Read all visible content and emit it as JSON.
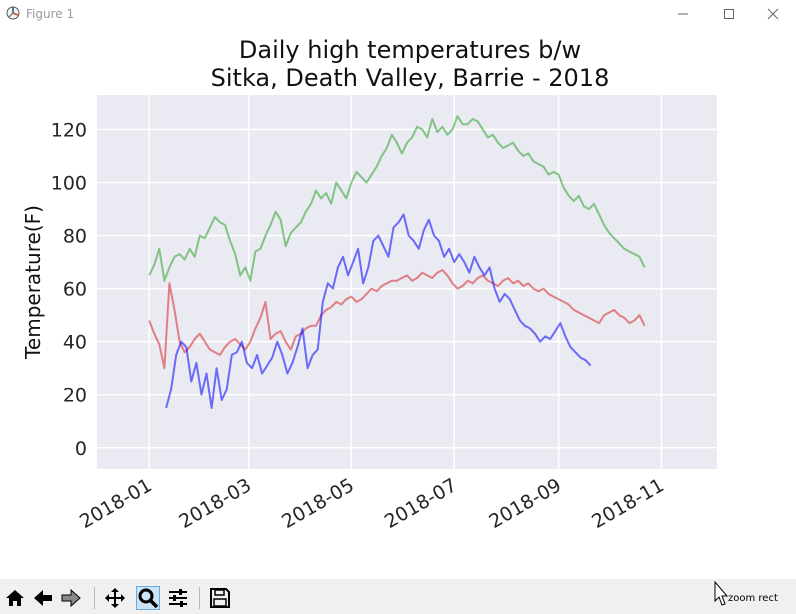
{
  "window": {
    "title": "Figure 1",
    "controls": [
      "minimize",
      "maximize",
      "close"
    ]
  },
  "toolbar": {
    "buttons": [
      "home-icon",
      "back-icon",
      "forward-icon",
      "pan-icon",
      "zoom-icon",
      "configure-icon",
      "save-icon"
    ],
    "active": "zoom-icon",
    "status": "zoom rect"
  },
  "chart_data": {
    "type": "line",
    "title_line1": "Daily high temperatures b/w",
    "title_line2": "Sitka, Death Valley, Barrie - 2018",
    "xlabel": "",
    "ylabel": "Temperature(F)",
    "xlim": [
      "2017-12-01",
      "2018-12-04"
    ],
    "ylim": [
      -8,
      133
    ],
    "x_ticks": [
      "2018-01",
      "2018-03",
      "2018-05",
      "2018-07",
      "2018-09",
      "2018-11"
    ],
    "y_ticks": [
      0,
      20,
      40,
      60,
      80,
      100,
      120
    ],
    "grid": true,
    "background": "#eaeaf2",
    "series": [
      {
        "color": "#2ca02c",
        "start": "2018-01-01",
        "step_days": 3,
        "values": [
          65,
          69,
          75,
          63,
          68,
          72,
          73,
          71,
          75,
          72,
          80,
          79,
          83,
          87,
          85,
          84,
          78,
          73,
          65,
          68,
          63,
          74,
          75,
          80,
          84,
          89,
          86,
          76,
          81,
          83,
          85,
          89,
          92,
          97,
          94,
          96,
          92,
          100,
          97,
          94,
          100,
          104,
          102,
          100,
          103,
          106,
          110,
          113,
          118,
          115,
          111,
          115,
          117,
          121,
          120,
          117,
          124,
          119,
          121,
          118,
          120,
          125,
          122,
          122,
          124,
          123,
          120,
          117,
          118,
          115,
          113,
          114,
          115,
          112,
          110,
          111,
          108,
          107,
          106,
          103,
          104,
          103,
          98,
          95,
          93,
          95,
          91,
          90,
          92,
          88,
          84,
          81,
          79,
          77,
          75,
          74,
          73,
          72,
          68
        ]
      },
      {
        "color": "#d62728",
        "start": "2018-01-01",
        "step_days": 3,
        "values": [
          48,
          43,
          39,
          30,
          62,
          52,
          40,
          36,
          38,
          41,
          43,
          40,
          37,
          36,
          35,
          38,
          40,
          41,
          39,
          37,
          40,
          45,
          49,
          55,
          41,
          43,
          44,
          40,
          37,
          42,
          43,
          45,
          46,
          46,
          50,
          52,
          53,
          55,
          54,
          56,
          57,
          55,
          56,
          58,
          60,
          59,
          61,
          62,
          63,
          63,
          64,
          65,
          63,
          64,
          66,
          65,
          64,
          66,
          67,
          65,
          62,
          60,
          61,
          63,
          62,
          64,
          65,
          63,
          62,
          61,
          63,
          64,
          62,
          63,
          61,
          62,
          60,
          59,
          60,
          58,
          57,
          56,
          55,
          54,
          52,
          51,
          50,
          49,
          48,
          47,
          50,
          51,
          52,
          50,
          49,
          47,
          48,
          50,
          46
        ]
      },
      {
        "color": "#0000ff",
        "start": "2018-01-11",
        "step_days": 3,
        "values": [
          15,
          22,
          35,
          40,
          38,
          25,
          32,
          20,
          28,
          15,
          30,
          18,
          22,
          35,
          36,
          40,
          32,
          30,
          35,
          28,
          31,
          34,
          40,
          35,
          28,
          32,
          38,
          45,
          30,
          35,
          37,
          55,
          62,
          60,
          68,
          72,
          65,
          70,
          75,
          62,
          68,
          78,
          80,
          76,
          72,
          83,
          85,
          88,
          80,
          78,
          75,
          82,
          86,
          80,
          78,
          72,
          75,
          70,
          73,
          70,
          66,
          72,
          68,
          65,
          68,
          60,
          55,
          58,
          56,
          52,
          48,
          46,
          45,
          43,
          40,
          42,
          41,
          44,
          47,
          42,
          38,
          36,
          34,
          33,
          31
        ]
      }
    ]
  }
}
